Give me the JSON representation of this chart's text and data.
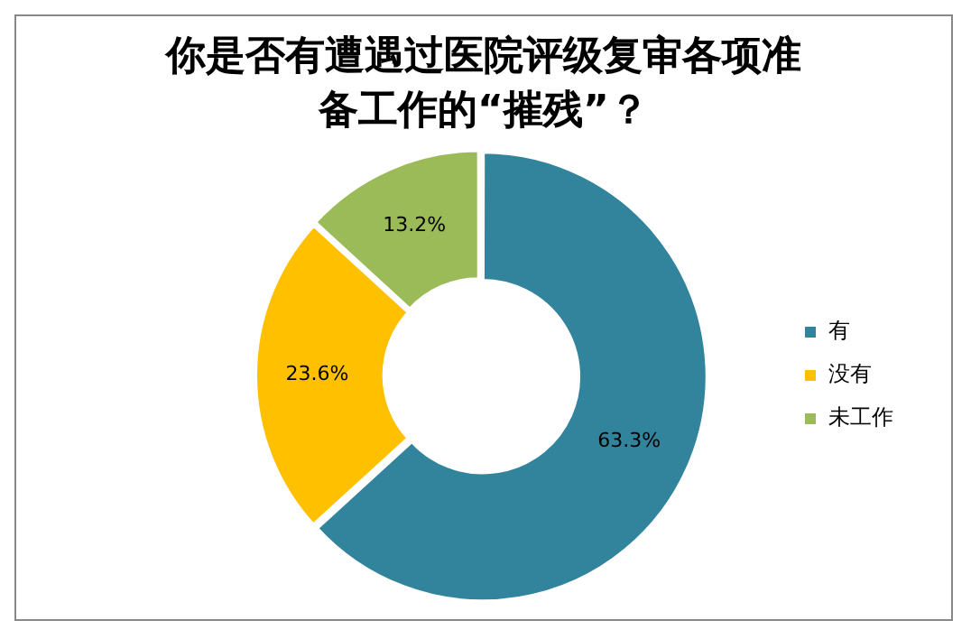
{
  "chart_data": {
    "type": "donut",
    "title": "你是否有遭遇过医院评级复审各项准备工作的“摧残”？",
    "categories": [
      "有",
      "没有",
      "未工作"
    ],
    "values": [
      63.3,
      23.6,
      13.2
    ],
    "value_labels": [
      "63.3%",
      "23.6%",
      "13.2%"
    ],
    "colors": [
      "#31849b",
      "#ffc000",
      "#9bbb59"
    ],
    "legend": "right"
  }
}
